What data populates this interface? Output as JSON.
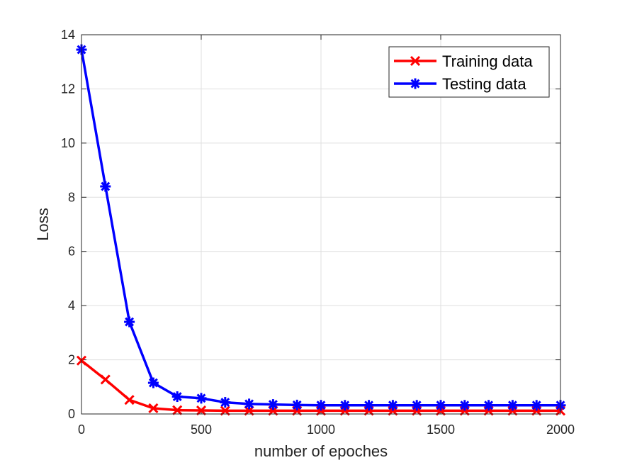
{
  "chart_data": {
    "type": "line",
    "title": "",
    "xlabel": "number of epoches",
    "ylabel": "Loss",
    "xlim": [
      0,
      2000
    ],
    "ylim": [
      0,
      14
    ],
    "xticks": [
      0,
      500,
      1000,
      1500,
      2000
    ],
    "yticks": [
      0,
      2,
      4,
      6,
      8,
      10,
      12,
      14
    ],
    "x_tick_labels": [
      "0",
      "500",
      "1000",
      "1500",
      "2000"
    ],
    "y_tick_labels": [
      "0",
      "2",
      "4",
      "6",
      "8",
      "10",
      "12",
      "14"
    ],
    "grid": true,
    "legend_position": "top-right",
    "x": [
      0,
      100,
      200,
      300,
      400,
      500,
      600,
      700,
      800,
      900,
      1000,
      1100,
      1200,
      1300,
      1400,
      1500,
      1600,
      1700,
      1800,
      1900,
      2000
    ],
    "series": [
      {
        "name": "Training data",
        "color": "#ff0000",
        "marker": "x",
        "values": [
          1.97,
          1.27,
          0.52,
          0.21,
          0.14,
          0.13,
          0.12,
          0.12,
          0.12,
          0.12,
          0.12,
          0.12,
          0.12,
          0.12,
          0.12,
          0.12,
          0.12,
          0.12,
          0.12,
          0.12,
          0.12
        ]
      },
      {
        "name": "Testing data",
        "color": "#0000ff",
        "marker": "asterisk",
        "values": [
          13.45,
          8.4,
          3.4,
          1.15,
          0.64,
          0.58,
          0.43,
          0.37,
          0.35,
          0.33,
          0.32,
          0.32,
          0.32,
          0.32,
          0.32,
          0.32,
          0.32,
          0.32,
          0.32,
          0.32,
          0.32
        ]
      }
    ]
  }
}
